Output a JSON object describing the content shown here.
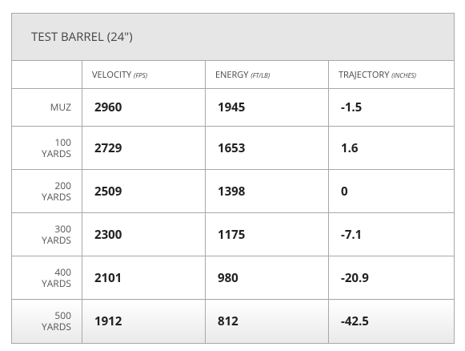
{
  "header": {
    "title": "TEST BARREL (24\")"
  },
  "table": {
    "columns": [
      {
        "label": "VELOCITY",
        "unit": "(FPS)"
      },
      {
        "label": "ENERGY",
        "unit": "(FT/LB)"
      },
      {
        "label": "TRAJECTORY",
        "unit": "(INCHES)"
      }
    ],
    "rows": [
      [
        "MUZ",
        "2960",
        "1945",
        "-1.5"
      ],
      [
        "100 YARDS",
        "2729",
        "1653",
        "1.6"
      ],
      [
        "200 YARDS",
        "2509",
        "1398",
        "0"
      ],
      [
        "300 YARDS",
        "2300",
        "1175",
        "-7.1"
      ],
      [
        "400 YARDS",
        "2101",
        "980",
        "-20.9"
      ],
      [
        "500 YARDS",
        "1912",
        "812",
        "-42.5"
      ]
    ]
  }
}
